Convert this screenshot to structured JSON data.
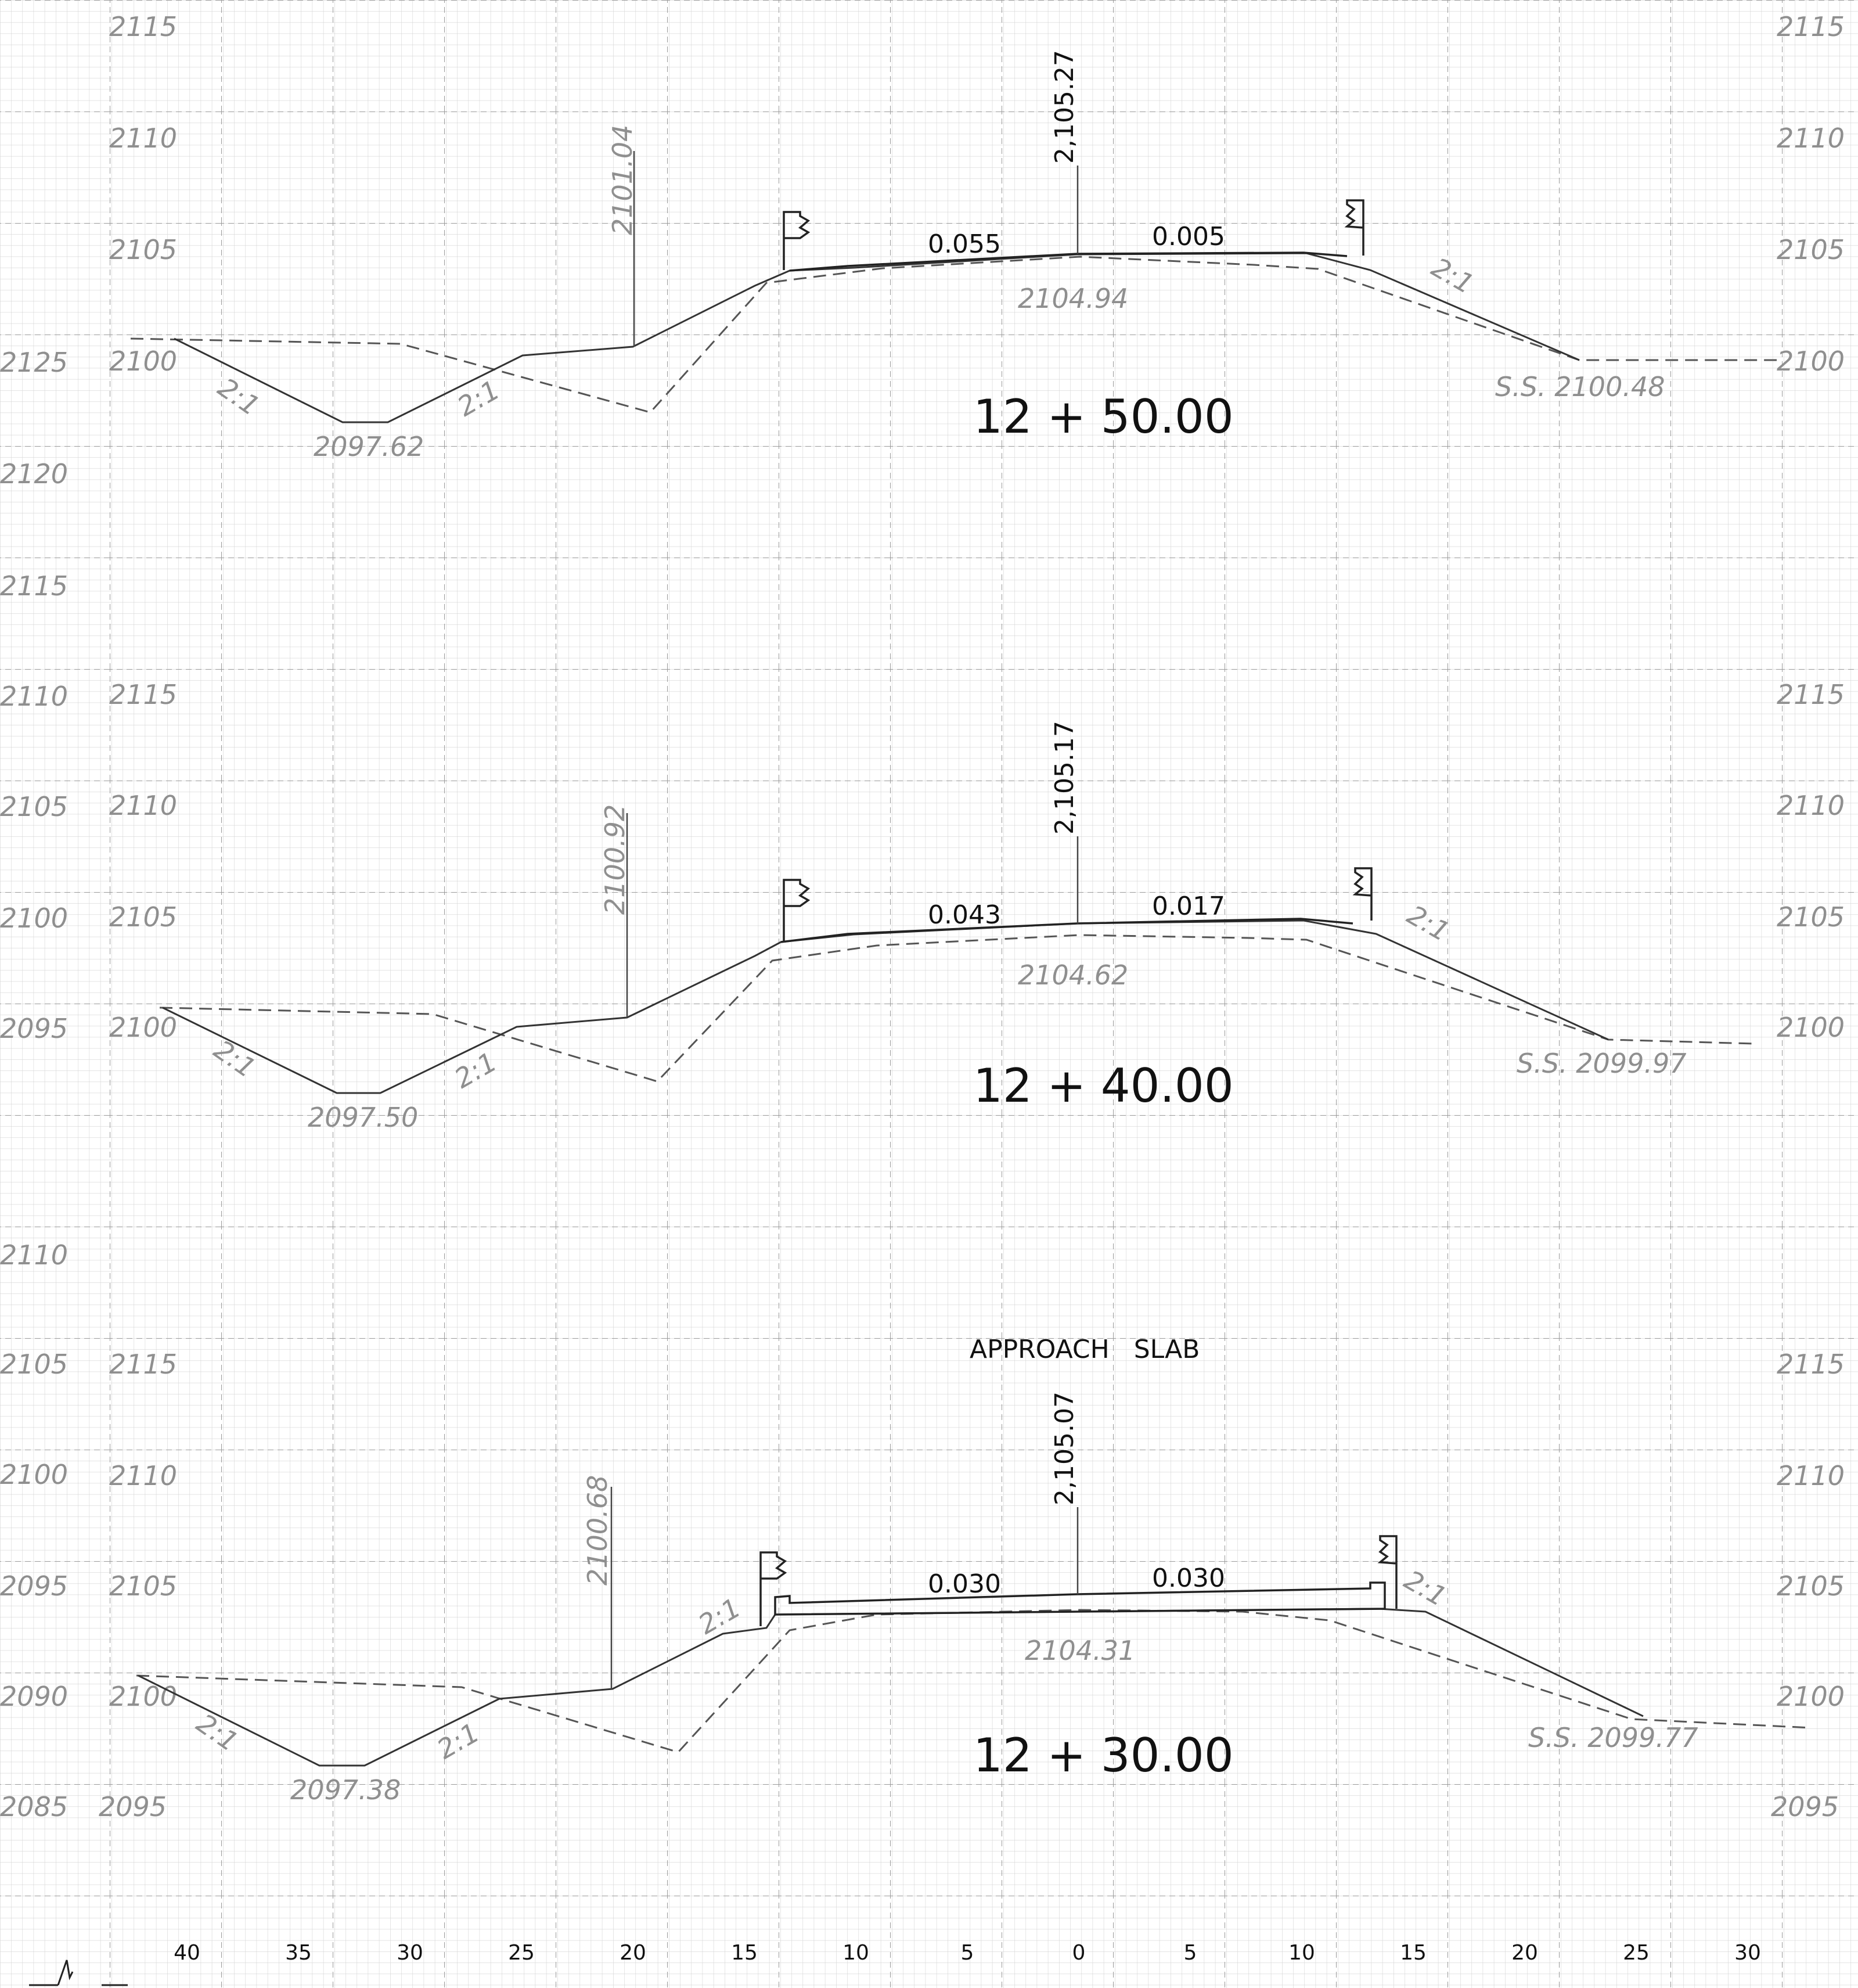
{
  "elevation_labels": {
    "left_outer": [
      "2125",
      "2120",
      "2115",
      "2110",
      "2105",
      "2100",
      "2095",
      "2110",
      "2105",
      "2100",
      "2095",
      "2090",
      "2085"
    ],
    "left_inner": [
      "2115",
      "2110",
      "2105",
      "2100",
      "2115",
      "2110",
      "2105",
      "2100",
      "2115",
      "2110",
      "2105",
      "2100",
      "2095"
    ],
    "right": [
      "2115",
      "2110",
      "2105",
      "2100",
      "2115",
      "2110",
      "2105",
      "2100",
      "2115",
      "2110",
      "2105",
      "2100",
      "2095"
    ]
  },
  "offset_axis": [
    "40",
    "35",
    "30",
    "25",
    "20",
    "15",
    "10",
    "5",
    "0",
    "5",
    "10",
    "15",
    "20",
    "25",
    "30"
  ],
  "sections": [
    {
      "station": "12 + 50.00",
      "centerline_elevation": "2,105.27",
      "left_slope": "0.055",
      "right_slope": "0.005",
      "subgrade_elevation": "2104.94",
      "left_ditch_elevation": "2097.62",
      "left_hinge_elevation": "2101.04",
      "slope_ratios": [
        "2:1",
        "2:1",
        "2:1"
      ],
      "slope_stake": "S.S. 2100.48"
    },
    {
      "station": "12 + 40.00",
      "centerline_elevation": "2,105.17",
      "left_slope": "0.043",
      "right_slope": "0.017",
      "subgrade_elevation": "2104.62",
      "left_ditch_elevation": "2097.50",
      "left_hinge_elevation": "2100.92",
      "slope_ratios": [
        "2:1",
        "2:1",
        "2:1"
      ],
      "slope_stake": "S.S. 2099.97"
    },
    {
      "station": "12 + 30.00",
      "centerline_elevation": "2,105.07",
      "left_slope": "0.030",
      "right_slope": "0.030",
      "subgrade_elevation": "2104.31",
      "left_ditch_elevation": "2097.38",
      "left_hinge_elevation": "2100.68",
      "slope_ratios": [
        "2:1",
        "2:1",
        "2:1",
        "2:1"
      ],
      "slope_stake": "S.S. 2099.77",
      "note": "APPROACH   SLAB"
    }
  ]
}
